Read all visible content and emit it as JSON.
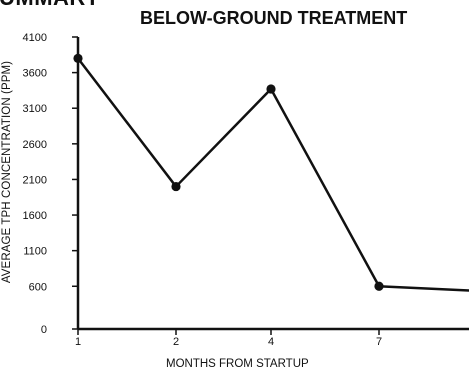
{
  "page": {
    "cut_heading": "UMMARY"
  },
  "chart_data": {
    "type": "line",
    "title": "BELOW-GROUND TREATMENT",
    "xlabel": "MONTHS FROM STARTUP",
    "ylabel": "AVERAGE TPH CONCENTRATION (PPM)",
    "categories": [
      "1",
      "2",
      "4",
      "7",
      ""
    ],
    "series": [
      {
        "values": [
          3800,
          2000,
          3370,
          600,
          540
        ],
        "markers": [
          true,
          true,
          true,
          true,
          false
        ]
      }
    ],
    "ylim": [
      0,
      4100
    ],
    "yticks": [
      0,
      600,
      1100,
      1600,
      2100,
      2600,
      3100,
      3600,
      4100
    ],
    "grid": false,
    "legend": "none",
    "line_color": "#111111"
  }
}
